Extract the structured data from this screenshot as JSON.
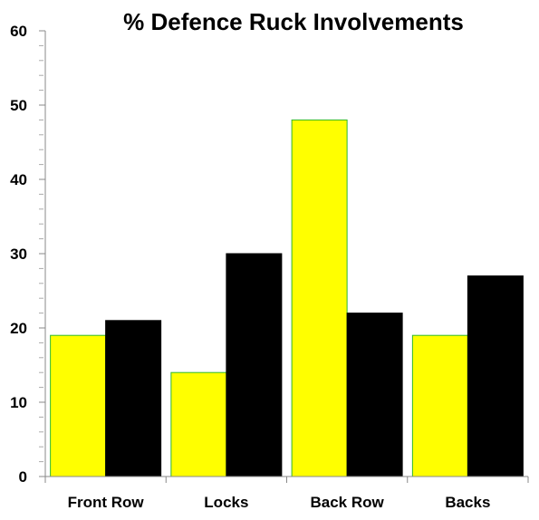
{
  "chart_data": {
    "type": "bar",
    "title": "% Defence Ruck Involvements",
    "xlabel": "",
    "ylabel": "",
    "categories": [
      "Front Row",
      "Locks",
      "Back Row",
      "Backs"
    ],
    "series": [
      {
        "values": [
          19,
          14,
          48,
          19
        ],
        "color": "#ffff00",
        "edge": "#2eb82e"
      },
      {
        "values": [
          21,
          30,
          22,
          27
        ],
        "color": "#000000",
        "edge": "#000000"
      }
    ],
    "ylim": [
      0,
      60
    ],
    "yticks": [
      0,
      10,
      20,
      30,
      40,
      50,
      60
    ],
    "grid": false,
    "legend": "none"
  }
}
